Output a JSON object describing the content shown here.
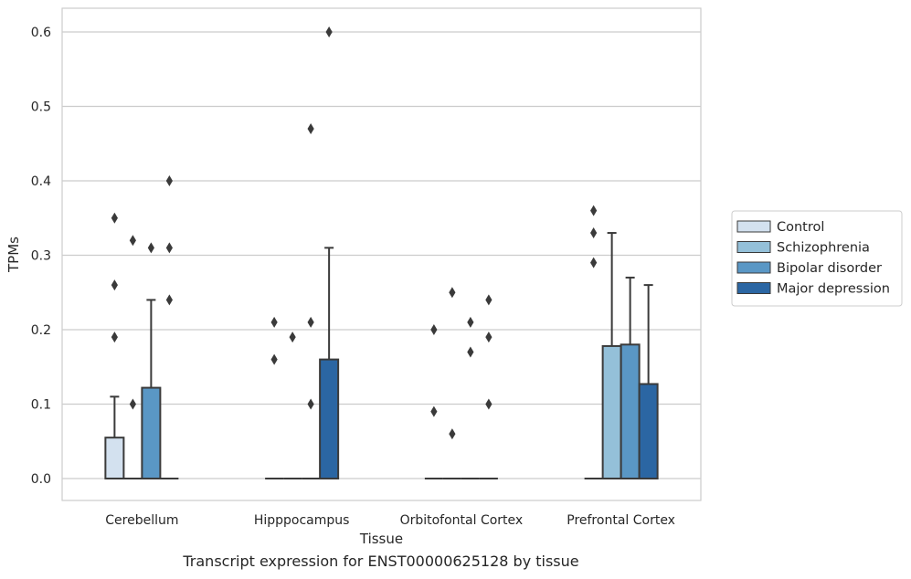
{
  "caption": "Transcript expression for ENST00000625128 by tissue",
  "chart_data": {
    "type": "box",
    "xlabel": "Tissue",
    "ylabel": "TPMs",
    "ylim": [
      -0.03,
      0.63
    ],
    "yticks": [
      0.0,
      0.1,
      0.2,
      0.3,
      0.4,
      0.5,
      0.6
    ],
    "ytick_labels": [
      "0.0",
      "0.1",
      "0.2",
      "0.3",
      "0.4",
      "0.5",
      "0.6"
    ],
    "grid": "horizontal",
    "legend_position": "right",
    "categories": [
      "Cerebellum",
      "Hipppocampus",
      "Orbitofontal Cortex",
      "Prefrontal Cortex"
    ],
    "series": [
      {
        "name": "Control",
        "color": "#d3e1ef",
        "boxes": [
          {
            "q1": 0.0,
            "median": 0.0,
            "q3": 0.055,
            "whisker_low": 0.0,
            "whisker_high": 0.11,
            "outliers": [
              0.19,
              0.26,
              0.35
            ]
          },
          {
            "q1": 0.0,
            "median": 0.0,
            "q3": 0.0,
            "whisker_low": 0.0,
            "whisker_high": 0.0,
            "outliers": [
              0.16,
              0.21
            ]
          },
          {
            "q1": 0.0,
            "median": 0.0,
            "q3": 0.0,
            "whisker_low": 0.0,
            "whisker_high": 0.0,
            "outliers": [
              0.09,
              0.2
            ]
          },
          {
            "q1": 0.0,
            "median": 0.0,
            "q3": 0.0,
            "whisker_low": 0.0,
            "whisker_high": 0.0,
            "outliers": [
              0.29,
              0.33,
              0.36
            ]
          }
        ]
      },
      {
        "name": "Schizophrenia",
        "color": "#94c0d9",
        "boxes": [
          {
            "q1": 0.0,
            "median": 0.0,
            "q3": 0.0,
            "whisker_low": 0.0,
            "whisker_high": 0.0,
            "outliers": [
              0.1,
              0.32
            ]
          },
          {
            "q1": 0.0,
            "median": 0.0,
            "q3": 0.0,
            "whisker_low": 0.0,
            "whisker_high": 0.0,
            "outliers": [
              0.19
            ]
          },
          {
            "q1": 0.0,
            "median": 0.0,
            "q3": 0.0,
            "whisker_low": 0.0,
            "whisker_high": 0.0,
            "outliers": [
              0.06,
              0.25
            ]
          },
          {
            "q1": 0.0,
            "median": 0.0,
            "q3": 0.178,
            "whisker_low": 0.0,
            "whisker_high": 0.33,
            "outliers": []
          }
        ]
      },
      {
        "name": "Bipolar disorder",
        "color": "#5a97c5",
        "boxes": [
          {
            "q1": 0.0,
            "median": 0.0,
            "q3": 0.122,
            "whisker_low": 0.0,
            "whisker_high": 0.24,
            "outliers": [
              0.31
            ]
          },
          {
            "q1": 0.0,
            "median": 0.0,
            "q3": 0.0,
            "whisker_low": 0.0,
            "whisker_high": 0.0,
            "outliers": [
              0.1,
              0.21,
              0.47
            ]
          },
          {
            "q1": 0.0,
            "median": 0.0,
            "q3": 0.0,
            "whisker_low": 0.0,
            "whisker_high": 0.0,
            "outliers": [
              0.17,
              0.21
            ]
          },
          {
            "q1": 0.0,
            "median": 0.0,
            "q3": 0.18,
            "whisker_low": 0.0,
            "whisker_high": 0.27,
            "outliers": []
          }
        ]
      },
      {
        "name": "Major depression",
        "color": "#2b66a3",
        "boxes": [
          {
            "q1": 0.0,
            "median": 0.0,
            "q3": 0.0,
            "whisker_low": 0.0,
            "whisker_high": 0.0,
            "outliers": [
              0.24,
              0.31,
              0.4
            ]
          },
          {
            "q1": 0.0,
            "median": 0.0,
            "q3": 0.16,
            "whisker_low": 0.0,
            "whisker_high": 0.31,
            "outliers": [
              0.6
            ]
          },
          {
            "q1": 0.0,
            "median": 0.0,
            "q3": 0.0,
            "whisker_low": 0.0,
            "whisker_high": 0.0,
            "outliers": [
              0.1,
              0.19,
              0.24
            ]
          },
          {
            "q1": 0.0,
            "median": 0.0,
            "q3": 0.127,
            "whisker_low": 0.0,
            "whisker_high": 0.26,
            "outliers": []
          }
        ]
      }
    ]
  }
}
